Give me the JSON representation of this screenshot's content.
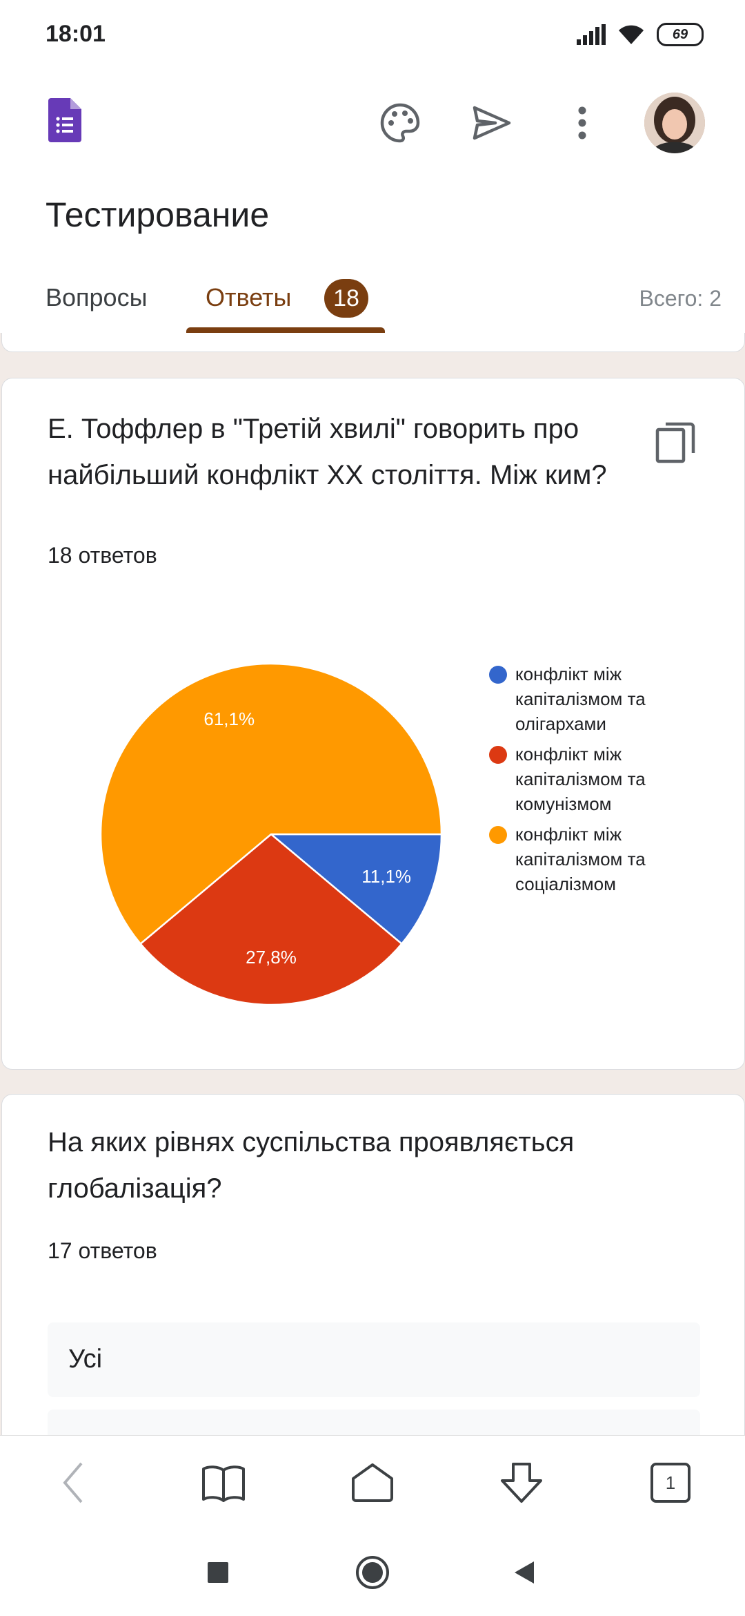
{
  "status_bar": {
    "time": "18:01",
    "battery": "69"
  },
  "app": {
    "title": "Тестирование"
  },
  "tabs": {
    "questions": "Вопросы",
    "answers": "Ответы",
    "answers_badge": "18",
    "total": "Всего: 2"
  },
  "question1": {
    "title": "Е. Тоффлер в \"Третій хвилі\" говорить про найбільший конфлікт XX століття. Між ким?",
    "count": "18 ответов",
    "chart_data": {
      "type": "pie",
      "slices": [
        {
          "label": "конфлікт між капіталізмом та олігархами",
          "value": 11.1,
          "display": "11,1%",
          "color": "#3366cc"
        },
        {
          "label": "конфлікт між капіталізмом та комунізмом",
          "value": 27.8,
          "display": "27,8%",
          "color": "#dc3912"
        },
        {
          "label": "конфлікт між капіталізмом та соціалізмом",
          "value": 61.1,
          "display": "61,1%",
          "color": "#ff9900"
        }
      ],
      "legend_position": "right"
    }
  },
  "question2": {
    "title": "На яких рівнях суспільства проявляється глобалізація?",
    "count": "17 ответов",
    "options": [
      "Усі"
    ]
  },
  "nav": {
    "tabs_count": "1"
  },
  "colors": {
    "accent": "#7a3e10",
    "background": "#f2ebe7",
    "forms_purple": "#673ab7"
  },
  "icons": {
    "appbar": [
      "forms-logo-icon",
      "palette-icon",
      "send-icon",
      "more-vert-icon"
    ],
    "question_card": "copy-icon",
    "browser_nav": [
      "back-icon",
      "book-icon",
      "home-icon",
      "download-icon",
      "tabs-icon"
    ],
    "system_nav": [
      "square-icon",
      "circle-icon",
      "triangle-back-icon"
    ]
  }
}
